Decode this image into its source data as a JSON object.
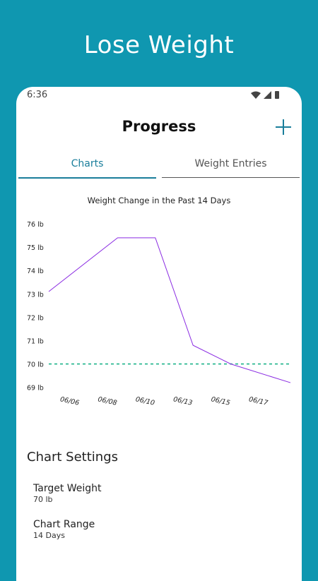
{
  "promo": {
    "title": "Lose Weight"
  },
  "status_bar": {
    "time": "6:36",
    "icons": [
      "wifi-icon",
      "signal-icon",
      "battery-icon"
    ]
  },
  "header": {
    "title": "Progress",
    "add_icon": "plus-icon"
  },
  "tabs": [
    {
      "label": "Charts",
      "selected": true
    },
    {
      "label": "Weight Entries",
      "selected": false
    }
  ],
  "colors": {
    "accent": "#1a7e9b",
    "line": "#8a2be2",
    "target": "#1cb48a",
    "background": "#0f97b0"
  },
  "chart_data": {
    "type": "line",
    "title": "Weight Change in the Past 14 Days",
    "y_ticks": [
      "76 lb",
      "75 lb",
      "74 lb",
      "73 lb",
      "72 lb",
      "71 lb",
      "70 lb",
      "69 lb"
    ],
    "y_tick_values": [
      76,
      75,
      74,
      73,
      72,
      71,
      70,
      69
    ],
    "x_ticks": [
      "06/06",
      "06/08",
      "06/10",
      "06/13",
      "06/15",
      "06/17"
    ],
    "ylim": [
      69,
      76
    ],
    "series": [
      {
        "points": [
          {
            "x": "06/06",
            "y": 73.1
          },
          {
            "x": "06/08",
            "y": 75.4
          },
          {
            "x": "06/10",
            "y": 75.4
          },
          {
            "x": "06/13",
            "y": 70.8
          },
          {
            "x": "06/15",
            "y": 70.0
          },
          {
            "x": "06/17",
            "y": 69.2
          }
        ]
      }
    ],
    "target_line": {
      "y": 70,
      "style": "dashed"
    },
    "grid": false,
    "legend": "none"
  },
  "settings": {
    "heading": "Chart Settings",
    "items": [
      {
        "label": "Target Weight",
        "value": "70 lb"
      },
      {
        "label": "Chart Range",
        "value": "14 Days"
      }
    ]
  }
}
